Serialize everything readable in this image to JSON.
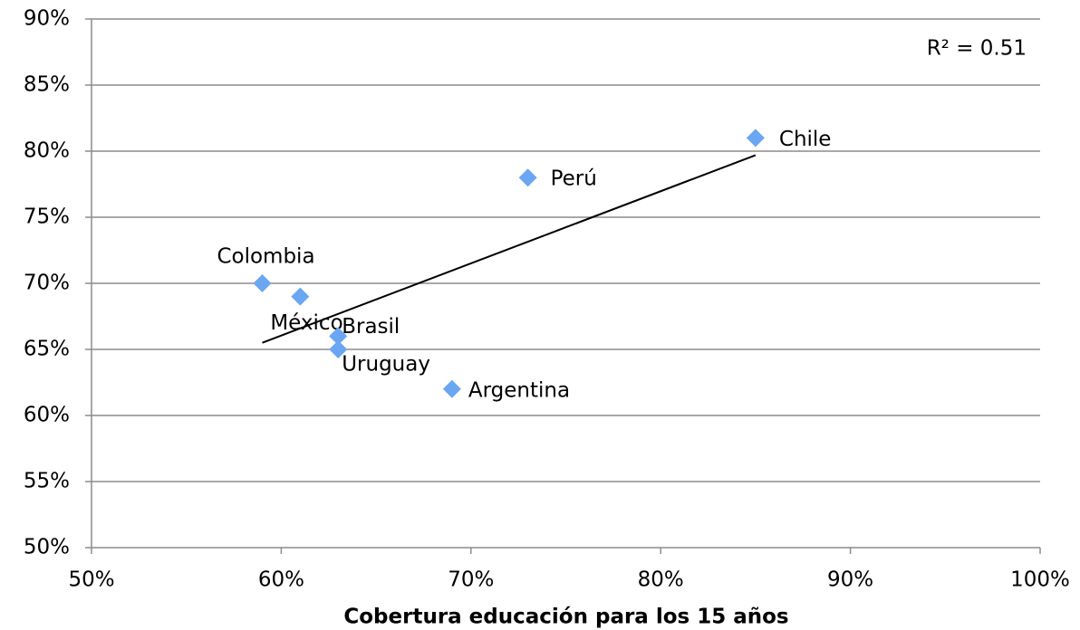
{
  "chart_data": {
    "type": "scatter",
    "xlabel": "Cobertura educación para los 15 años",
    "annotation": "R² = 0.51",
    "labels": [
      "Colombia",
      "México",
      "Brasil",
      "Uruguay",
      "Argentina",
      "Perú",
      "Chile"
    ],
    "x": [
      59,
      61,
      63,
      63,
      69,
      73,
      85
    ],
    "y": [
      70,
      69,
      66,
      65,
      62,
      78,
      81
    ],
    "color": "#6aa6f2",
    "trendline": {
      "x": [
        59,
        85
      ],
      "y": [
        65.5,
        79.7
      ]
    },
    "xlim": [
      50,
      100
    ],
    "xticks": [
      {
        "value": 50,
        "label": "50%"
      },
      {
        "value": 60,
        "label": "60%"
      },
      {
        "value": 70,
        "label": "70%"
      },
      {
        "value": 80,
        "label": "80%"
      },
      {
        "value": 90,
        "label": "90%"
      },
      {
        "value": 100,
        "label": "100%"
      }
    ],
    "ylim": [
      50,
      90
    ],
    "yticks": [
      {
        "value": 50,
        "label": "50%"
      },
      {
        "value": 55,
        "label": "55%"
      },
      {
        "value": 60,
        "label": "60%"
      },
      {
        "value": 65,
        "label": "65%"
      },
      {
        "value": 70,
        "label": "70%"
      },
      {
        "value": 75,
        "label": "75%"
      },
      {
        "value": 80,
        "label": "80%"
      },
      {
        "value": 85,
        "label": "85%"
      },
      {
        "value": 90,
        "label": "90%"
      }
    ],
    "grid": true
  }
}
